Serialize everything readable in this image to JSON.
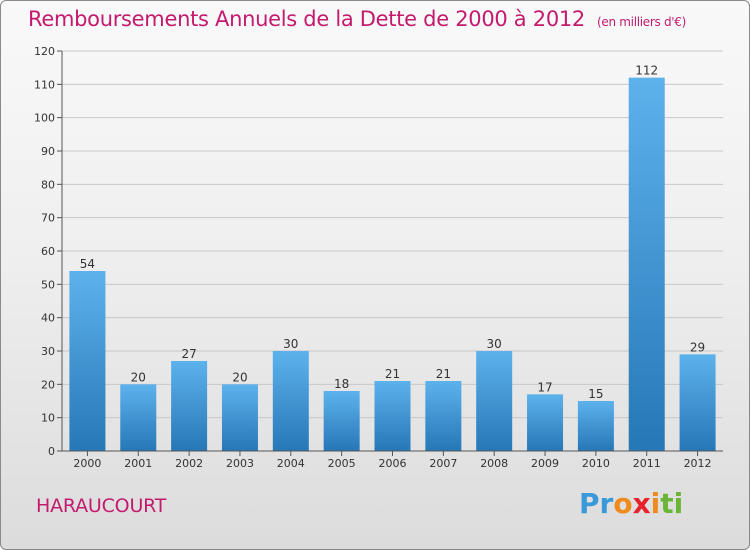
{
  "title": "Remboursements Annuels de la Dette de 2000 à 2012",
  "subtitle_unit": "(en milliers d'€)",
  "commune": "HARAUCOURT",
  "logo": {
    "letters": [
      "P",
      "r",
      "o",
      "x",
      "i",
      "t",
      "i"
    ],
    "colors": [
      "#3a9ad9",
      "#3a9ad9",
      "#f08a1c",
      "#e8212a",
      "#f08a1c",
      "#6bb536",
      "#6bb536"
    ]
  },
  "colors": {
    "accent": "#c41a6e",
    "bar_light": "#5aafea",
    "bar_dark": "#2a79b8"
  },
  "chart_data": {
    "type": "bar",
    "categories": [
      "2000",
      "2001",
      "2002",
      "2003",
      "2004",
      "2005",
      "2006",
      "2007",
      "2008",
      "2009",
      "2010",
      "2011",
      "2012"
    ],
    "values": [
      54,
      20,
      27,
      20,
      30,
      18,
      21,
      21,
      30,
      17,
      15,
      112,
      29
    ],
    "title": "Remboursements Annuels de la Dette de 2000 à 2012",
    "ylabel": "",
    "xlabel": "",
    "ylim": [
      0,
      120
    ],
    "yticks": [
      0,
      10,
      20,
      30,
      40,
      50,
      60,
      70,
      80,
      90,
      100,
      110,
      120
    ],
    "grid": true,
    "data_labels": true
  }
}
